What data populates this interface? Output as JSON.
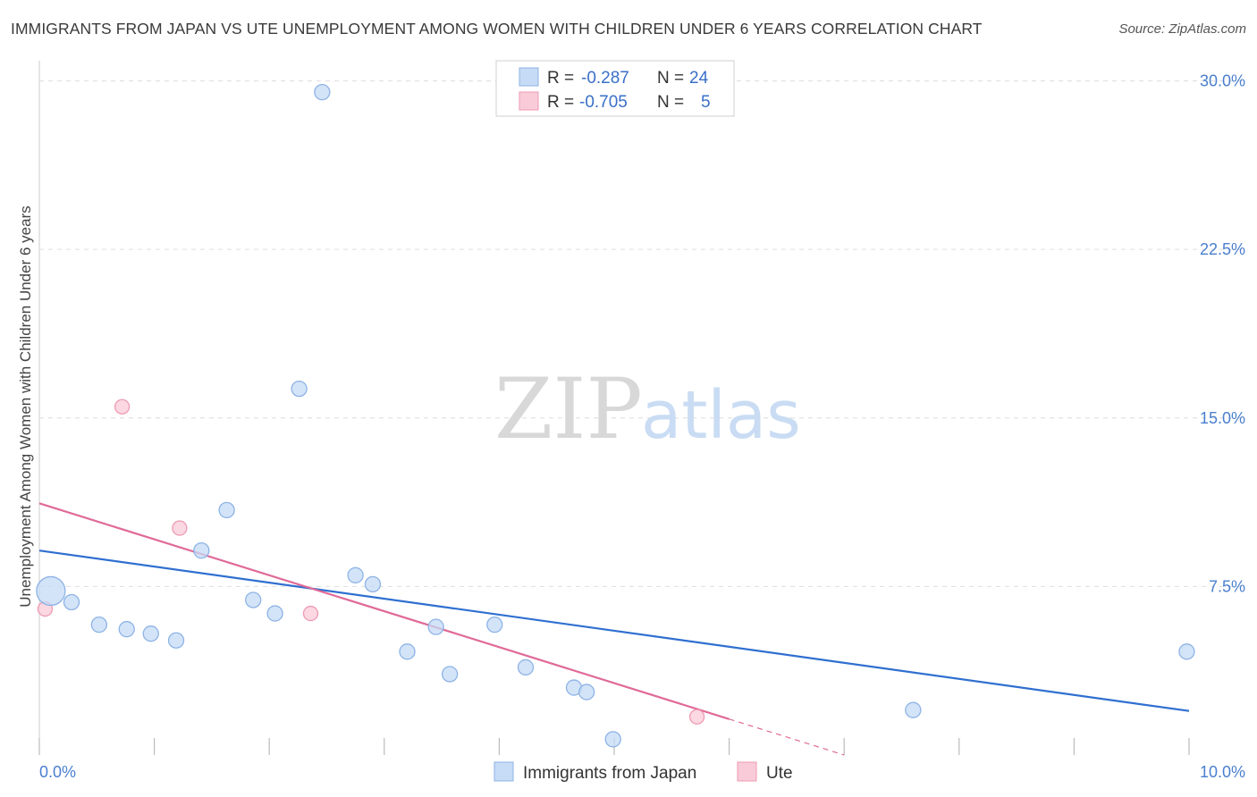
{
  "title": "IMMIGRANTS FROM JAPAN VS UTE UNEMPLOYMENT AMONG WOMEN WITH CHILDREN UNDER 6 YEARS CORRELATION CHART",
  "source": "Source: ZipAtlas.com",
  "watermark": {
    "zip": "ZIP",
    "atlas": "atlas"
  },
  "colors": {
    "japan_fill": "#c6dbf5",
    "japan_stroke": "#8db3e6",
    "japan_line": "#2f6fd0",
    "ute_fill": "#f9cbd8",
    "ute_stroke": "#ee9ab3",
    "ute_line": "#e06a98",
    "tick_text": "#4a7fcf",
    "grid": "#dddddd"
  },
  "chart_data": {
    "type": "scatter",
    "title": "IMMIGRANTS FROM JAPAN VS UTE UNEMPLOYMENT AMONG WOMEN WITH CHILDREN UNDER 6 YEARS CORRELATION CHART",
    "xlabel": "",
    "ylabel": "Unemployment Among Women with Children Under 6 years",
    "xlim": [
      0,
      10
    ],
    "ylim": [
      0,
      30.5
    ],
    "x_tick_labels": [
      "0.0%",
      "10.0%"
    ],
    "y_ticks": [
      7.5,
      15.0,
      22.5,
      30.0
    ],
    "y_tick_labels": [
      "7.5%",
      "15.0%",
      "22.5%",
      "30.0%"
    ],
    "grid": true,
    "legend_position": "top-center",
    "series": [
      {
        "name": "Immigrants from Japan",
        "R": "-0.287",
        "N": "24",
        "points": [
          {
            "x": 0.1,
            "y": 7.3,
            "big": true
          },
          {
            "x": 0.28,
            "y": 6.8
          },
          {
            "x": 0.52,
            "y": 5.8
          },
          {
            "x": 0.76,
            "y": 5.6
          },
          {
            "x": 0.97,
            "y": 5.4
          },
          {
            "x": 1.19,
            "y": 5.1
          },
          {
            "x": 1.41,
            "y": 9.1
          },
          {
            "x": 1.63,
            "y": 10.9
          },
          {
            "x": 1.86,
            "y": 6.9
          },
          {
            "x": 2.05,
            "y": 6.3
          },
          {
            "x": 2.26,
            "y": 16.3
          },
          {
            "x": 2.46,
            "y": 29.5
          },
          {
            "x": 2.75,
            "y": 8.0
          },
          {
            "x": 2.9,
            "y": 7.6
          },
          {
            "x": 3.2,
            "y": 4.6
          },
          {
            "x": 3.45,
            "y": 5.7
          },
          {
            "x": 3.57,
            "y": 3.6
          },
          {
            "x": 3.96,
            "y": 5.8
          },
          {
            "x": 4.23,
            "y": 3.9
          },
          {
            "x": 4.65,
            "y": 3.0
          },
          {
            "x": 4.76,
            "y": 2.8
          },
          {
            "x": 4.99,
            "y": 0.7
          },
          {
            "x": 7.6,
            "y": 2.0
          },
          {
            "x": 9.98,
            "y": 4.6
          }
        ],
        "trend": {
          "x1": 0.0,
          "y1": 9.1,
          "x2": 10.0,
          "y2": 1.96
        }
      },
      {
        "name": "Ute",
        "R": "-0.705",
        "N": "5",
        "points": [
          {
            "x": 0.05,
            "y": 6.5
          },
          {
            "x": 0.72,
            "y": 15.5
          },
          {
            "x": 1.22,
            "y": 10.1
          },
          {
            "x": 2.36,
            "y": 6.3
          },
          {
            "x": 5.72,
            "y": 1.7
          }
        ],
        "trend": {
          "x1": 0.0,
          "y1": 11.2,
          "x2": 6.0,
          "y2": 1.6
        },
        "trend_dashed": {
          "x1": 6.0,
          "y1": 1.6,
          "x2": 7.0,
          "y2": 0.0
        }
      }
    ]
  },
  "legend": {
    "rows": [
      {
        "r_label": "R =",
        "r_value": "-0.287",
        "n_label": "N =",
        "n_value": "24"
      },
      {
        "r_label": "R =",
        "r_value": "-0.705",
        "n_label": "N =",
        "n_value": "5"
      }
    ]
  },
  "bottom_legend": [
    "Immigrants from Japan",
    "Ute"
  ]
}
